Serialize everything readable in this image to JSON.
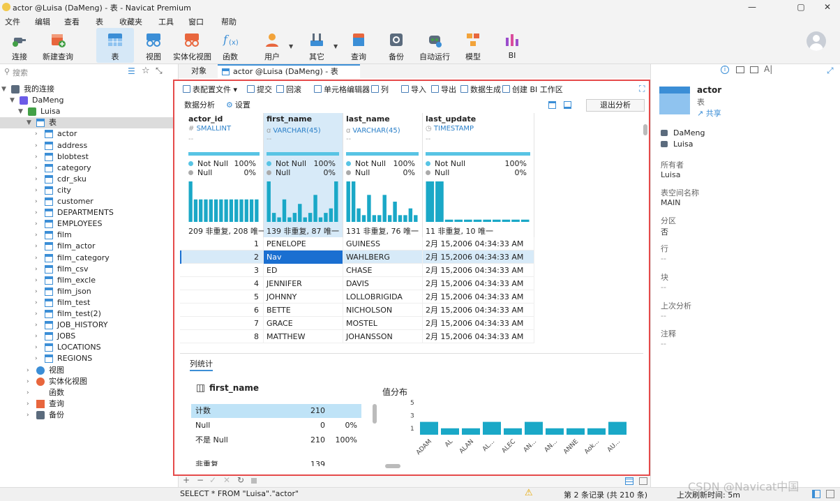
{
  "window": {
    "title": "actor @Luisa (DaMeng) - 表 - Navicat Premium"
  },
  "menu": [
    "文件",
    "编辑",
    "查看",
    "表",
    "收藏夹",
    "工具",
    "窗口",
    "帮助"
  ],
  "toolbar": [
    "连接",
    "新建查询",
    "表",
    "视图",
    "实体化视图",
    "函数",
    "用户",
    "其它",
    "查询",
    "备份",
    "自动运行",
    "模型",
    "BI"
  ],
  "nav": {
    "search_placeholder": "搜索",
    "root": "我的连接",
    "connection": "DaMeng",
    "schema": "Luisa",
    "tables_group": "表",
    "tables": [
      "actor",
      "address",
      "blobtest",
      "category",
      "cdr_sku",
      "city",
      "customer",
      "DEPARTMENTS",
      "EMPLOYEES",
      "film",
      "film_actor",
      "film_category",
      "film_csv",
      "film_excle",
      "film_json",
      "film_test",
      "film_test(2)",
      "JOB_HISTORY",
      "JOBS",
      "LOCATIONS",
      "REGIONS"
    ],
    "groups": [
      "视图",
      "实体化视图",
      "函数",
      "查询",
      "备份"
    ]
  },
  "tabs": {
    "objects": "对象",
    "active": "actor @Luisa (DaMeng) - 表"
  },
  "subtoolbar": {
    "profile": "表配置文件",
    "commit": "提交",
    "rollback": "回滚",
    "cell_editor": "单元格编辑器",
    "columns": "列",
    "import": "导入",
    "export": "导出",
    "data_gen": "数据生成",
    "create_bi": "创建 BI 工作区",
    "data_analysis": "数据分析",
    "settings": "设置",
    "exit_analysis": "退出分析"
  },
  "grid": {
    "columns": [
      {
        "name": "actor_id",
        "type": "SMALLINT",
        "type_icon": "#",
        "notnull_pct": "100%",
        "null_pct": "0%",
        "uniq": "209 非重复, 208 唯一"
      },
      {
        "name": "first_name",
        "type": "VARCHAR(45)",
        "type_icon": "abc",
        "notnull_pct": "100%",
        "null_pct": "0%",
        "uniq": "139 非重复, 87 唯一"
      },
      {
        "name": "last_name",
        "type": "VARCHAR(45)",
        "type_icon": "abc",
        "notnull_pct": "100%",
        "null_pct": "0%",
        "uniq": "131 非重复, 76 唯一"
      },
      {
        "name": "last_update",
        "type": "TIMESTAMP",
        "type_icon": "clock",
        "notnull_pct": "100%",
        "null_pct": "0%",
        "uniq": "11 非重复, 10 唯一"
      }
    ],
    "notnull_label": "Not Null",
    "null_label": "Null",
    "dash": "--",
    "rows": [
      [
        "1",
        "PENELOPE",
        "GUINESS",
        "2月 15,2006 04:34:33 AM"
      ],
      [
        "2",
        "Nav",
        "WAHLBERG",
        "2月 15,2006 04:34:33 AM"
      ],
      [
        "3",
        "ED",
        "CHASE",
        "2月 15,2006 04:34:33 AM"
      ],
      [
        "4",
        "JENNIFER",
        "DAVIS",
        "2月 15,2006 04:34:33 AM"
      ],
      [
        "5",
        "JOHNNY",
        "LOLLOBRIGIDA",
        "2月 15,2006 04:34:33 AM"
      ],
      [
        "6",
        "BETTE",
        "NICHOLSON",
        "2月 15,2006 04:34:33 AM"
      ],
      [
        "7",
        "GRACE",
        "MOSTEL",
        "2月 15,2006 04:34:33 AM"
      ],
      [
        "8",
        "MATTHEW",
        "JOHANSSON",
        "2月 15,2006 04:34:33 AM"
      ]
    ],
    "histograms": [
      [
        9,
        5,
        5,
        5,
        5,
        5,
        5,
        5,
        5,
        5,
        5,
        5,
        5,
        5
      ],
      [
        9,
        2,
        1,
        5,
        1,
        2,
        4,
        1,
        2,
        6,
        1,
        2,
        3,
        9
      ],
      [
        6,
        6,
        2,
        1,
        4,
        1,
        1,
        4,
        1,
        3,
        1,
        1,
        2,
        1
      ],
      [
        9,
        9,
        0.5,
        0.5,
        0.5,
        0.5,
        0.5,
        0.5,
        0.5,
        0.5,
        0.5
      ]
    ]
  },
  "stats": {
    "tab": "列统计",
    "column": "first_name",
    "rows": [
      {
        "label": "计数",
        "value": "210",
        "pct": ""
      },
      {
        "label": "Null",
        "value": "0",
        "pct": "0%"
      },
      {
        "label": "不是 Null",
        "value": "210",
        "pct": "100%"
      },
      {
        "label": "非重复",
        "value": "139",
        "pct": ""
      }
    ],
    "dist_title": "值分布"
  },
  "chart_data": {
    "type": "bar",
    "title": "值分布",
    "categories": [
      "ADAM",
      "AL",
      "ALAN",
      "AL...",
      "ALEC",
      "AN...",
      "AN...",
      "ANNE",
      "Aok...",
      "AU..."
    ],
    "values": [
      2,
      1,
      1,
      2,
      1,
      2,
      1,
      1,
      1,
      2
    ],
    "yticks": [
      "5",
      "3",
      "1"
    ],
    "ylim": [
      0,
      5
    ]
  },
  "rpanel": {
    "name": "actor",
    "kind": "表",
    "share": "共享",
    "conn": "DaMeng",
    "schema": "Luisa",
    "owner_label": "所有者",
    "owner": "Luisa",
    "tablespace_label": "表空间名称",
    "tablespace": "MAIN",
    "partition_label": "分区",
    "partition": "否",
    "rows_label": "行",
    "rows": "--",
    "blocks_label": "块",
    "blocks": "--",
    "last_analysis_label": "上次分析",
    "last_analysis": "--",
    "comment_label": "注释",
    "comment": "--"
  },
  "status": {
    "sql": "SELECT * FROM \"Luisa\".\"actor\"",
    "record": "第 2 条记录 (共 210 条)",
    "refresh": "上次刷新时间: 5m"
  },
  "watermark": "CSDN @Navicat中国",
  "colors": {
    "accent": "#3b8ed6",
    "bar": "#1aa8c7",
    "highlight": "#1a6fd1",
    "frame": "#e54a4a"
  }
}
